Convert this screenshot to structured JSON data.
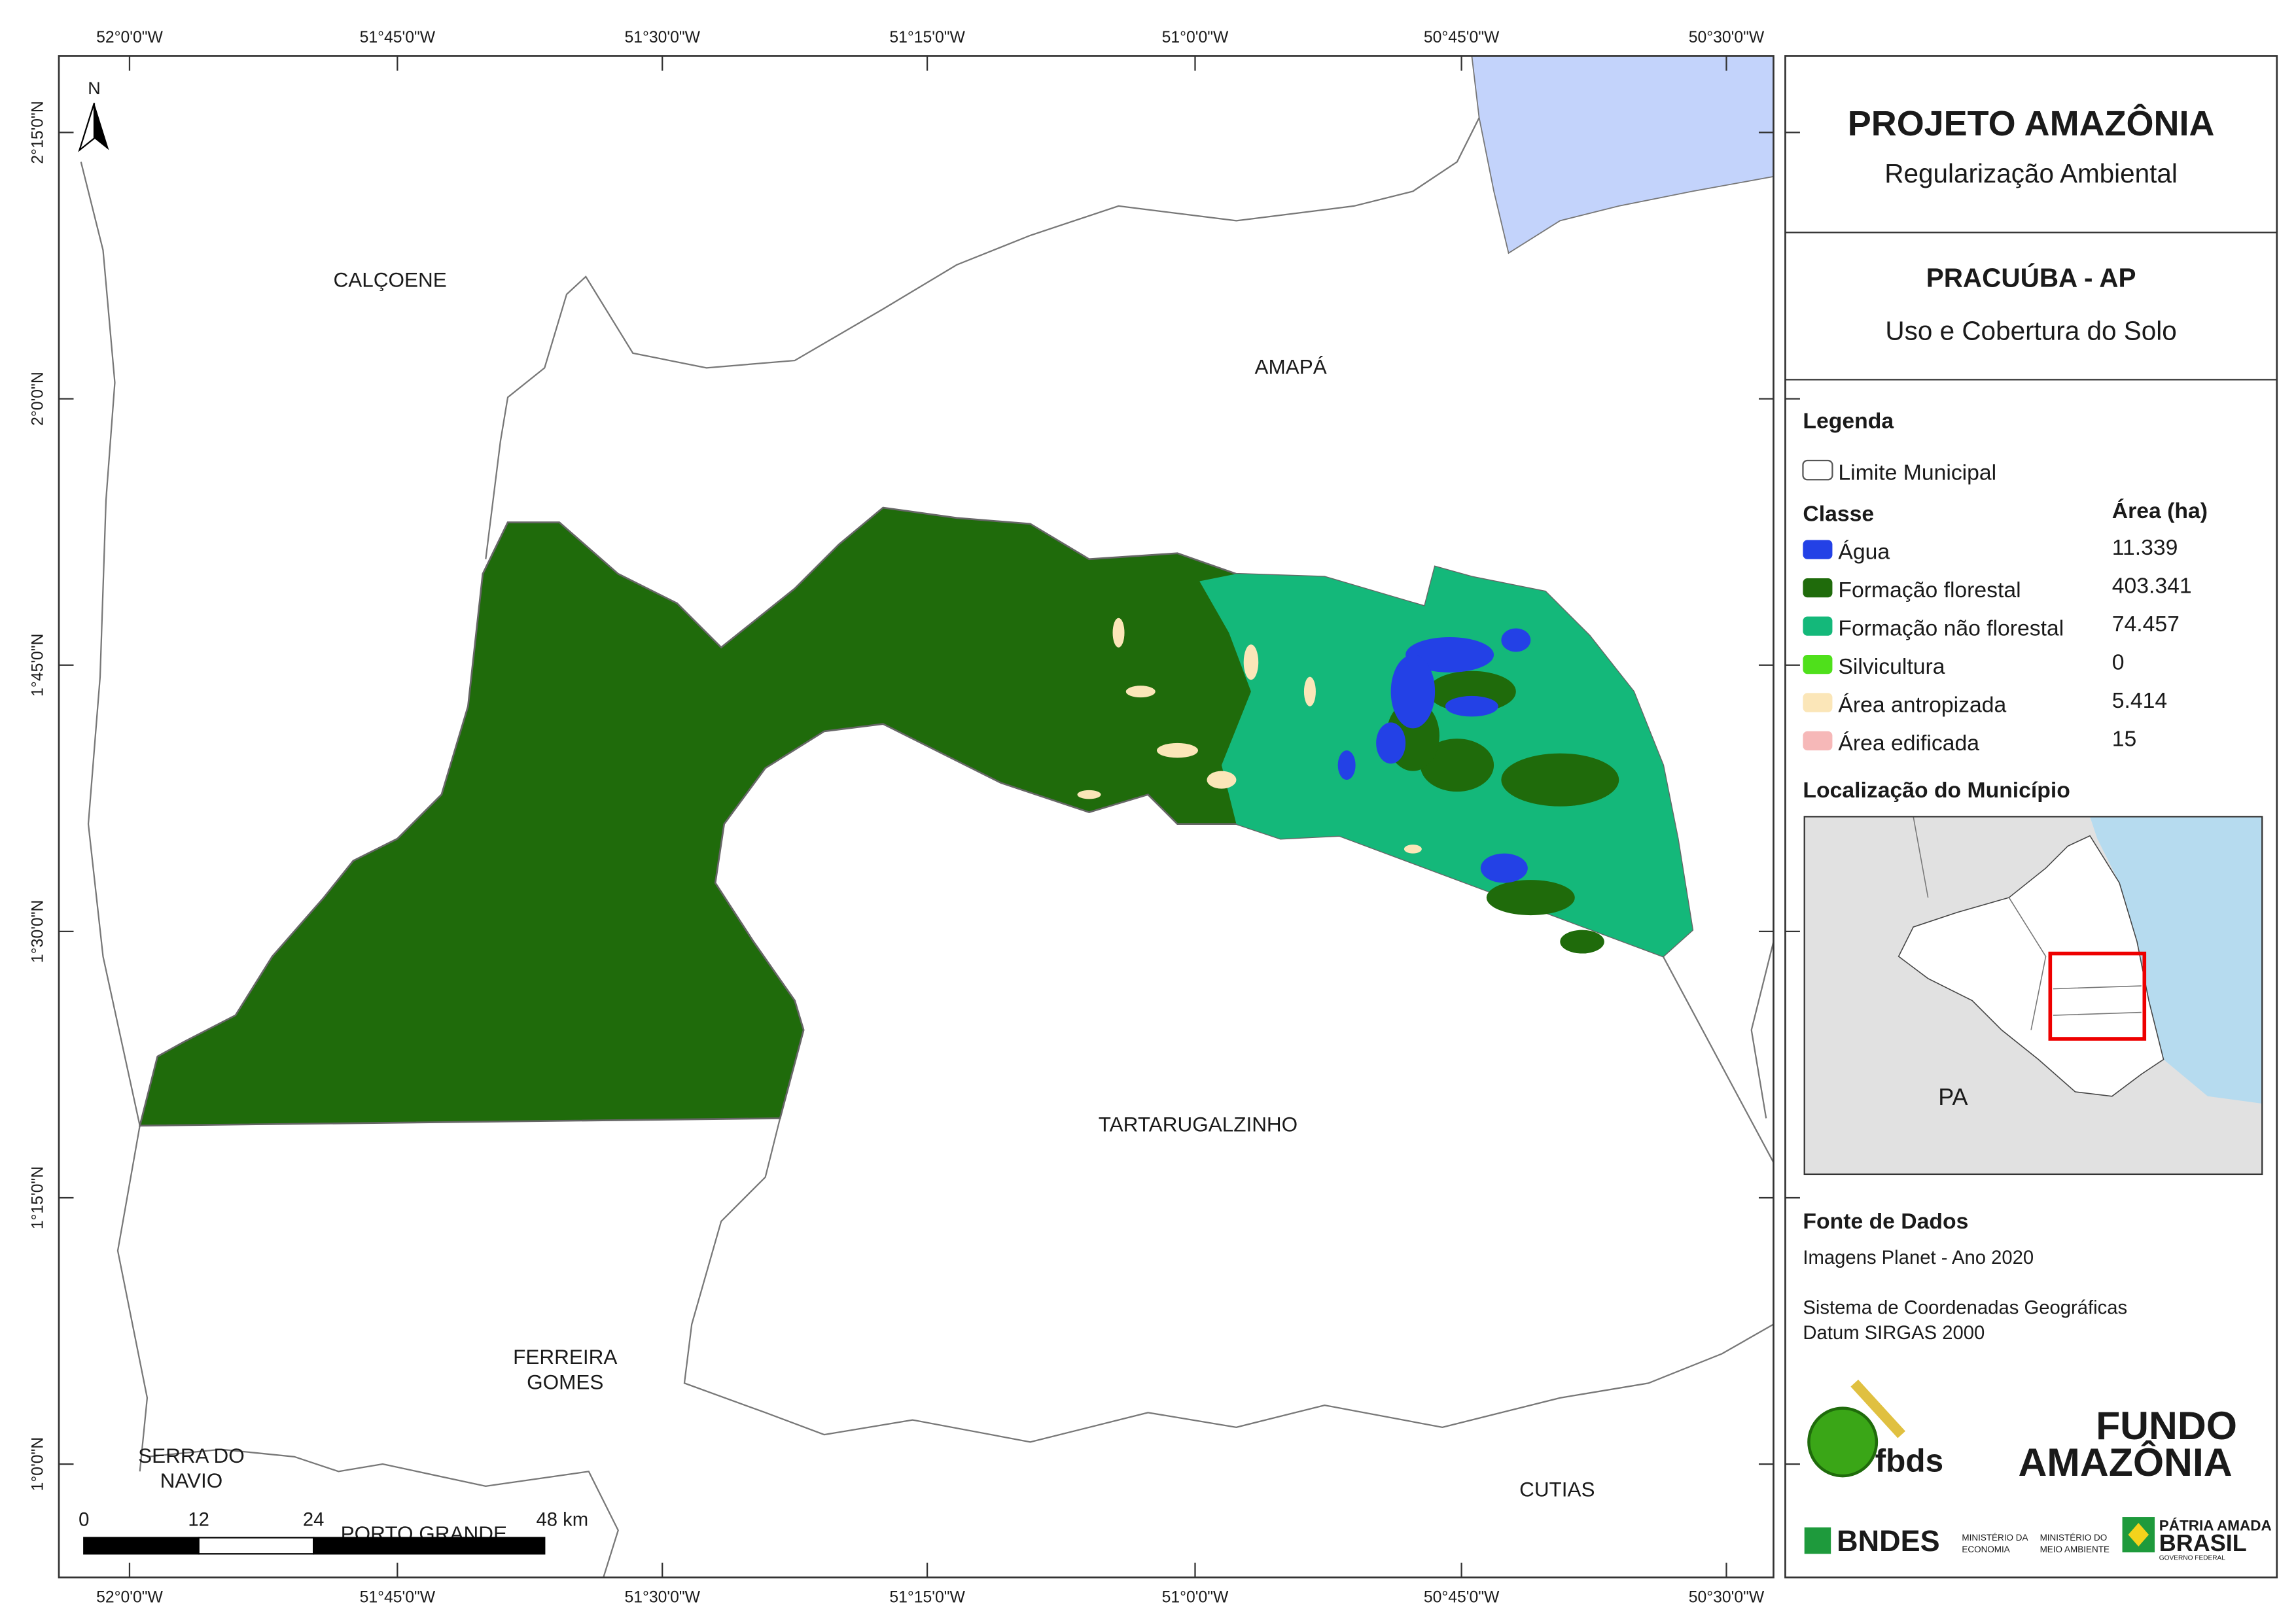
{
  "header": {
    "title": "PROJETO AMAZÔNIA",
    "subtitle": "Regularização Ambiental"
  },
  "map_title": {
    "municipality": "PRACUÚBA - AP",
    "theme": "Uso e Cobertura do Solo"
  },
  "legend": {
    "title": "Legenda",
    "boundary": "Limite Municipal",
    "class_header": "Classe",
    "area_header": "Área (ha)",
    "classes": [
      {
        "name": "Água",
        "area": "11.339",
        "color": "#2341e6"
      },
      {
        "name": "Formação florestal",
        "area": "403.341",
        "color": "#1f6b0b"
      },
      {
        "name": "Formação não florestal",
        "area": "74.457",
        "color": "#14b87a"
      },
      {
        "name": "Silvicultura",
        "area": "0",
        "color": "#4fe01b"
      },
      {
        "name": "Área antropizada",
        "area": "5.414",
        "color": "#fbe6b8"
      },
      {
        "name": "Área edificada",
        "area": "15",
        "color": "#f6b8b8"
      }
    ]
  },
  "location": {
    "title": "Localização do Município",
    "label": "PA"
  },
  "sources": {
    "title": "Fonte de Dados",
    "lines": [
      "Imagens Planet - Ano 2020",
      "Sistema de Coordenadas Geográficas",
      "Datum SIRGAS 2000"
    ]
  },
  "map": {
    "north": "N",
    "x_ticks": [
      "52°0'0\"W",
      "51°45'0\"W",
      "51°30'0\"W",
      "51°15'0\"W",
      "51°0'0\"W",
      "50°45'0\"W",
      "50°30'0\"W"
    ],
    "y_ticks": [
      "2°15'0\"N",
      "2°0'0\"N",
      "1°45'0\"N",
      "1°30'0\"N",
      "1°15'0\"N",
      "1°0'0\"N"
    ],
    "place_labels": [
      [
        "CALÇOENE"
      ],
      [
        "AMAPÁ"
      ],
      [
        "TARTARUGALZINHO"
      ],
      [
        "FERREIRA",
        "GOMES"
      ],
      [
        "SERRA DO",
        "NAVIO"
      ],
      [
        "CUTIAS"
      ],
      [
        "PORTO GRANDE"
      ]
    ],
    "scale_bar": [
      "0",
      "12",
      "24",
      "48 km"
    ]
  },
  "logos": {
    "fbds": "fbds",
    "fundo": "FUNDO",
    "amazonia": "AMAZÔNIA",
    "bndes": "BNDES",
    "min1": [
      "MINISTÉRIO DA",
      "ECONOMIA"
    ],
    "min2": [
      "MINISTÉRIO DO",
      "MEIO AMBIENTE"
    ],
    "patria": "PÁTRIA AMADA",
    "brasil": "BRASIL",
    "gov": "GOVERNO FEDERAL"
  }
}
